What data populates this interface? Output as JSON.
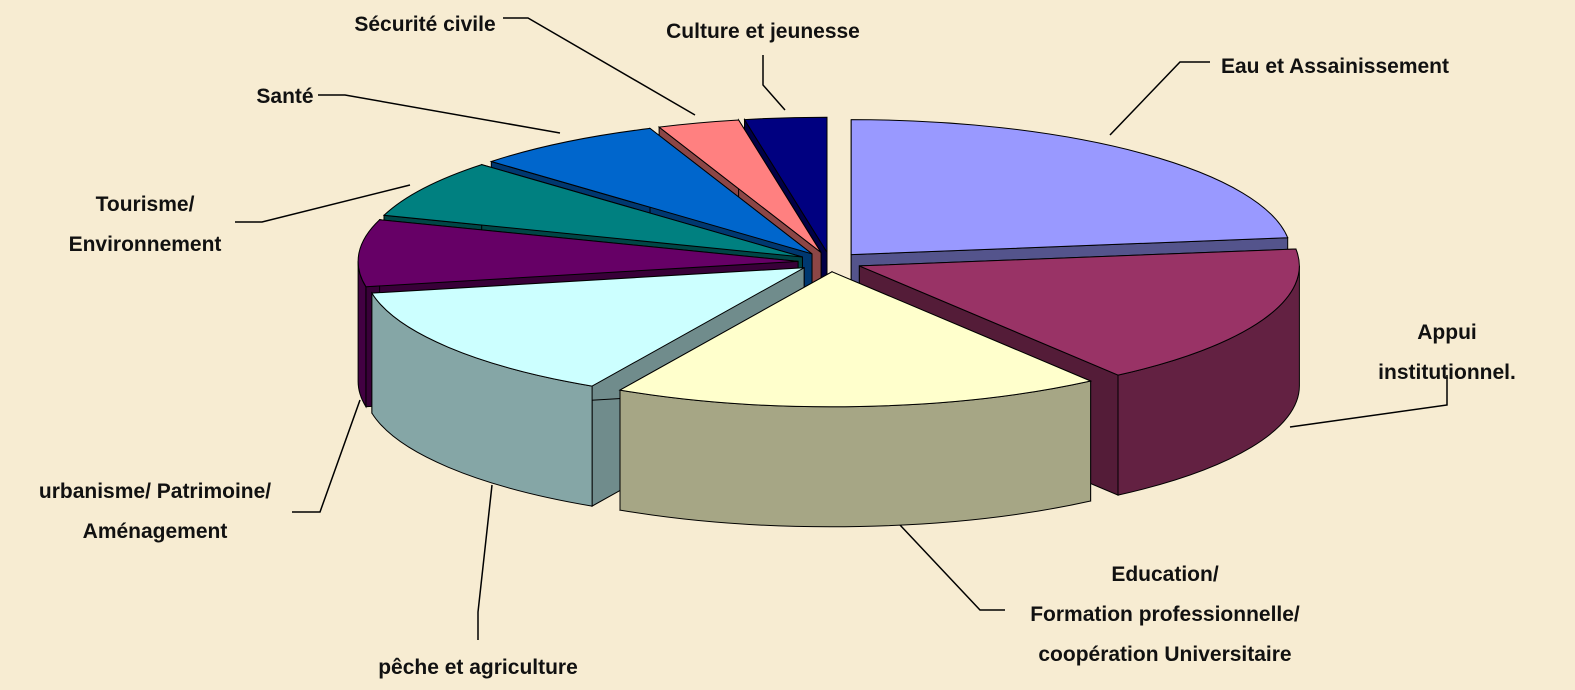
{
  "chart_data": {
    "type": "pie3d",
    "categories": [
      "Eau et Assainissement",
      "Appui institutionnel.",
      "Education/\nFormation professionnelle/\ncoopération  Universitaire",
      "pêche et agriculture",
      "urbanisme/ Patrimoine/\nAménagement",
      "Tourisme/\nEnvironnement",
      "Santé",
      "Sécurité civile",
      "Culture et jeunesse"
    ],
    "values": [
      23,
      17,
      18,
      14,
      8,
      7,
      7,
      3,
      3
    ],
    "colors": [
      "#9999ff",
      "#993366",
      "#ffffcc",
      "#ccffff",
      "#660066",
      "#008080",
      "#0066cc",
      "#ff8080",
      "#000080"
    ]
  }
}
